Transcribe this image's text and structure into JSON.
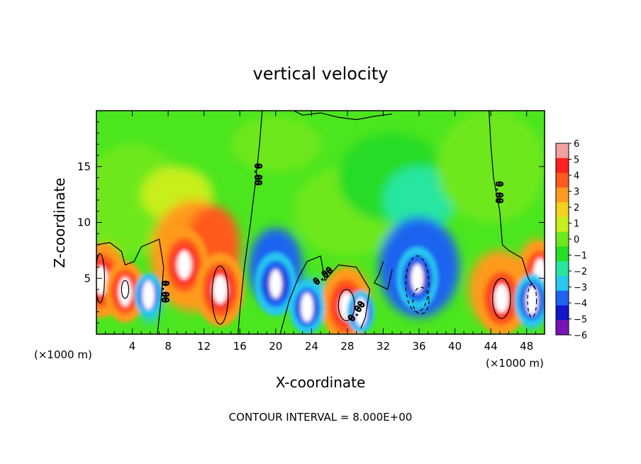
{
  "chart_data": {
    "type": "heatmap",
    "title": "vertical velocity",
    "xlabel": "X-coordinate",
    "ylabel": "Z-coordinate",
    "x_units": "(×1000 m)",
    "z_units": "(×1000 m)",
    "xlim": [
      0,
      50
    ],
    "ylim": [
      0,
      20
    ],
    "x_ticks": [
      "4",
      "8",
      "12",
      "16",
      "20",
      "24",
      "28",
      "32",
      "36",
      "40",
      "44",
      "48"
    ],
    "y_ticks": [
      "5",
      "10",
      "15"
    ],
    "colorbar": {
      "range": [
        -6,
        6
      ],
      "labels": [
        "6",
        "5",
        "4",
        "3",
        "2",
        "1",
        "0",
        "−1",
        "−2",
        "−3",
        "−4",
        "−5",
        "−6"
      ],
      "colors": [
        "#f4a0a0",
        "#ff2020",
        "#ff5a1e",
        "#ff9a1e",
        "#f2d21c",
        "#c8ee1e",
        "#6ee81e",
        "#28dc28",
        "#28e6a0",
        "#28c8f0",
        "#1e64f0",
        "#1414c8",
        "#7814b4"
      ]
    },
    "zero_contour_label": "0.00",
    "updraft_cores": [
      {
        "x": 0.5,
        "z": 4.8,
        "w": 6
      },
      {
        "x": 3.2,
        "z": 3.8,
        "w": 5
      },
      {
        "x": 9.8,
        "z": 6.2,
        "w": 6
      },
      {
        "x": 13.8,
        "z": 4.0,
        "w": 6
      },
      {
        "x": 27.9,
        "z": 2.5,
        "w": 6
      },
      {
        "x": 45.2,
        "z": 3.2,
        "w": 6
      },
      {
        "x": 49.5,
        "z": 5.5,
        "w": 5
      }
    ],
    "downdraft_cores": [
      {
        "x": 5.8,
        "z": 3.5,
        "w": -4
      },
      {
        "x": 20.0,
        "z": 4.5,
        "w": -6
      },
      {
        "x": 23.5,
        "z": 2.4,
        "w": -5
      },
      {
        "x": 29.5,
        "z": 2.0,
        "w": -4
      },
      {
        "x": 35.8,
        "z": 5.0,
        "w": -6
      },
      {
        "x": 48.6,
        "z": 3.0,
        "w": -5
      }
    ],
    "annotation": "CONTOUR INTERVAL = 8.000E+00"
  }
}
